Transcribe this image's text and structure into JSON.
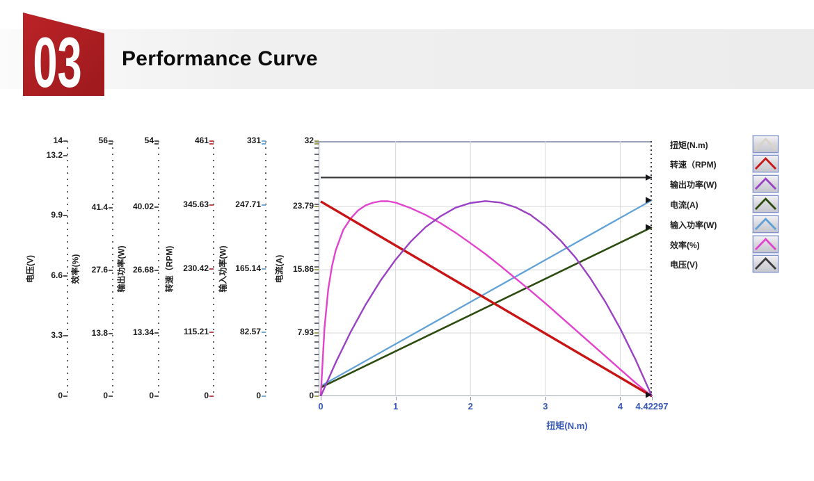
{
  "header": {
    "badge_number": "03",
    "title": "Performance Curve",
    "badge_color": "#b01f23",
    "band_color": "#ececec"
  },
  "chart_data": {
    "type": "line",
    "title": "",
    "xlabel": "扭矩(N.m)",
    "x_max": 4.42297,
    "grid": true,
    "legend_position": "right",
    "x_ticks": [
      {
        "label": "0",
        "value": 0
      },
      {
        "label": "1",
        "value": 1
      },
      {
        "label": "2",
        "value": 2
      },
      {
        "label": "3",
        "value": 3
      },
      {
        "label": "4",
        "value": 4
      },
      {
        "label": "4.42297",
        "value": 4.42297
      }
    ],
    "y_axes": [
      {
        "id": "voltage",
        "title": "电压(V)",
        "max": 14,
        "tick_color": "#555555",
        "double_top": false,
        "ticks": [
          {
            "label": "14",
            "value": 14
          },
          {
            "label": "13.2",
            "value": 13.2
          },
          {
            "label": "9.9",
            "value": 9.9
          },
          {
            "label": "6.6",
            "value": 6.6
          },
          {
            "label": "3.3",
            "value": 3.3
          },
          {
            "label": "0",
            "value": 0
          }
        ]
      },
      {
        "id": "efficiency",
        "title": "效率(%)",
        "max": 56,
        "tick_color": "#555555",
        "double_top": true,
        "ticks": [
          {
            "label": "56",
            "value": 56
          },
          {
            "label": "41.4",
            "value": 41.4
          },
          {
            "label": "27.6",
            "value": 27.6
          },
          {
            "label": "13.8",
            "value": 13.8
          },
          {
            "label": "0",
            "value": 0
          }
        ]
      },
      {
        "id": "out_power",
        "title": "输出功率(W)",
        "max": 54,
        "tick_color": "#555555",
        "double_top": true,
        "ticks": [
          {
            "label": "54",
            "value": 54
          },
          {
            "label": "40.02",
            "value": 40.02
          },
          {
            "label": "26.68",
            "value": 26.68
          },
          {
            "label": "13.34",
            "value": 13.34
          },
          {
            "label": "0",
            "value": 0
          }
        ]
      },
      {
        "id": "speed",
        "title": "转速（RPM)",
        "max": 461,
        "tick_color": "#c04848",
        "double_top": true,
        "ticks": [
          {
            "label": "461",
            "value": 461
          },
          {
            "label": "345.63",
            "value": 345.63
          },
          {
            "label": "230.42",
            "value": 230.42
          },
          {
            "label": "115.21",
            "value": 115.21
          },
          {
            "label": "0",
            "value": 0
          }
        ]
      },
      {
        "id": "in_power",
        "title": "输入功率(W)",
        "max": 331,
        "tick_color": "#74aad8",
        "double_top": true,
        "ticks": [
          {
            "label": "331",
            "value": 331
          },
          {
            "label": "247.71",
            "value": 247.71
          },
          {
            "label": "165.14",
            "value": 165.14
          },
          {
            "label": "82.57",
            "value": 82.57
          },
          {
            "label": "0",
            "value": 0
          }
        ]
      },
      {
        "id": "current",
        "title": "电流(A)",
        "max": 32,
        "tick_color": "#9aa05a",
        "double_top": true,
        "ticks": [
          {
            "label": "32",
            "value": 32
          },
          {
            "label": "23.79",
            "value": 23.79
          },
          {
            "label": "15.86",
            "value": 15.86
          },
          {
            "label": "7.93",
            "value": 7.93
          },
          {
            "label": "0",
            "value": 0
          }
        ]
      }
    ],
    "series": [
      {
        "id": "torque",
        "name": "扭矩(N.m)",
        "color": "#d9d2c6",
        "axis": "x",
        "width": 2.6,
        "end_marker": false,
        "points": []
      },
      {
        "id": "speed",
        "name": "转速（RPM)",
        "color": "#c81414",
        "axis": "speed",
        "width": 3.4,
        "end_marker": false,
        "points": [
          [
            0,
            352
          ],
          [
            4.42297,
            0
          ]
        ]
      },
      {
        "id": "out_power",
        "name": "输出功率(W)",
        "color": "#9a41c4",
        "axis": "out_power",
        "width": 2.4,
        "end_marker": false,
        "points": [
          [
            0,
            0
          ],
          [
            0.2,
            7.1
          ],
          [
            0.4,
            13.6
          ],
          [
            0.6,
            19.4
          ],
          [
            0.8,
            24.5
          ],
          [
            1,
            28.9
          ],
          [
            1.2,
            32.7
          ],
          [
            1.4,
            35.8
          ],
          [
            1.6,
            38.1
          ],
          [
            1.8,
            39.9
          ],
          [
            2,
            40.9
          ],
          [
            2.2,
            41.3
          ],
          [
            2.4,
            41
          ],
          [
            2.6,
            40
          ],
          [
            2.8,
            38.4
          ],
          [
            3,
            36
          ],
          [
            3.2,
            33
          ],
          [
            3.4,
            29.4
          ],
          [
            3.6,
            25
          ],
          [
            3.8,
            20
          ],
          [
            4,
            14.3
          ],
          [
            4.2,
            7.9
          ],
          [
            4.42297,
            0
          ]
        ]
      },
      {
        "id": "current",
        "name": "电流(A)",
        "color": "#2c4b0e",
        "axis": "current",
        "width": 2.6,
        "end_marker": true,
        "points": [
          [
            0,
            1.1
          ],
          [
            4.42297,
            21.2
          ]
        ]
      },
      {
        "id": "in_power",
        "name": "输入功率(W)",
        "color": "#5d9fd6",
        "axis": "in_power",
        "width": 2.2,
        "end_marker": true,
        "points": [
          [
            0,
            13.2
          ],
          [
            4.42297,
            254.4
          ]
        ]
      },
      {
        "id": "efficiency",
        "name": "效率(%)",
        "color": "#e243cd",
        "axis": "efficiency",
        "width": 2.4,
        "end_marker": false,
        "points": [
          [
            0,
            0
          ],
          [
            0.05,
            15
          ],
          [
            0.1,
            23.5
          ],
          [
            0.15,
            28.5
          ],
          [
            0.2,
            32
          ],
          [
            0.3,
            36.5
          ],
          [
            0.4,
            39
          ],
          [
            0.5,
            40.8
          ],
          [
            0.6,
            41.9
          ],
          [
            0.7,
            42.5
          ],
          [
            0.8,
            42.8
          ],
          [
            0.9,
            42.8
          ],
          [
            1,
            42.5
          ],
          [
            1.2,
            41.3
          ],
          [
            1.4,
            39.8
          ],
          [
            1.6,
            38
          ],
          [
            1.8,
            35.9
          ],
          [
            2,
            33.6
          ],
          [
            2.2,
            31.2
          ],
          [
            2.4,
            28.6
          ],
          [
            2.6,
            25.9
          ],
          [
            2.8,
            23.2
          ],
          [
            3,
            20.4
          ],
          [
            3.2,
            17.5
          ],
          [
            3.4,
            14.6
          ],
          [
            3.6,
            11.7
          ],
          [
            3.8,
            8.8
          ],
          [
            4,
            5.9
          ],
          [
            4.2,
            3
          ],
          [
            4.42297,
            0
          ]
        ]
      },
      {
        "id": "voltage",
        "name": "电压(V)",
        "color": "#3b3b3b",
        "axis": "voltage",
        "width": 2.2,
        "end_marker": true,
        "points": [
          [
            0,
            12
          ],
          [
            4.42297,
            12
          ]
        ]
      }
    ],
    "convergence_marker_at_max_torque": true
  }
}
